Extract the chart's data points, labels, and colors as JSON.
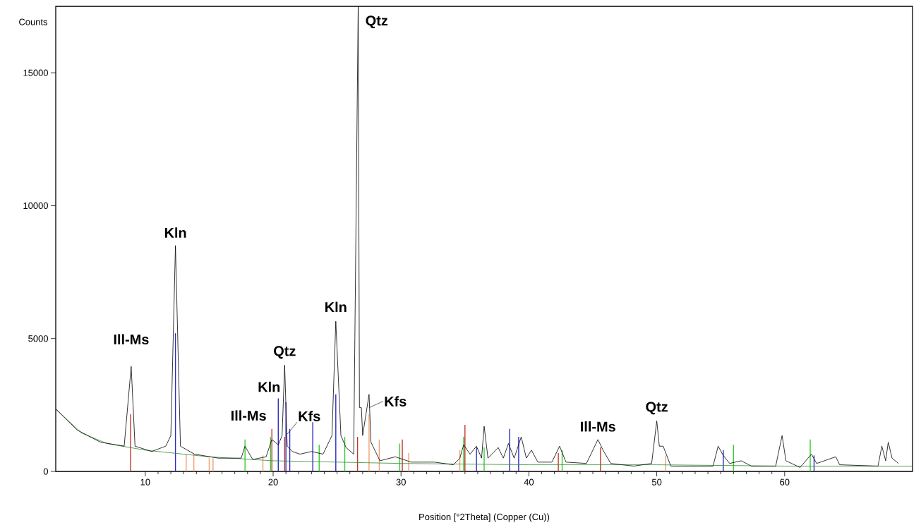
{
  "chart_data": {
    "type": "line",
    "xlabel": "Position [°2Theta] (Copper (Cu))",
    "ylabel": "Counts",
    "xlim": [
      3,
      70
    ],
    "ylim": [
      0,
      17500
    ],
    "xticks": [
      10,
      20,
      30,
      40,
      50,
      60
    ],
    "yticks": [
      0,
      5000,
      10000,
      15000
    ],
    "series": [
      {
        "type": "bar",
        "color": "#c0392b",
        "x": [
          8.85,
          19.9,
          20.9,
          26.6,
          30.1,
          35.0,
          42.3,
          45.6
        ],
        "values": [
          2150,
          1600,
          1300,
          1300,
          1200,
          1750,
          700,
          900
        ]
      },
      {
        "type": "bar",
        "color": "#2b2bc0",
        "x": [
          12.36,
          20.4,
          21.0,
          21.3,
          23.1,
          24.9,
          35.9,
          38.5,
          39.2,
          55.2,
          62.3
        ],
        "values": [
          5200,
          2750,
          2600,
          1600,
          1850,
          2900,
          900,
          1600,
          1300,
          800,
          600
        ]
      },
      {
        "type": "bar",
        "color": "#f0a070",
        "x": [
          13.2,
          13.8,
          15.0,
          15.3,
          19.2,
          27.5,
          28.3,
          30.6,
          34.6,
          50.7
        ],
        "values": [
          650,
          650,
          500,
          500,
          600,
          2150,
          1200,
          700,
          800,
          600
        ]
      },
      {
        "type": "bar",
        "color": "#33cc33",
        "x": [
          17.8,
          19.8,
          23.6,
          25.6,
          29.9,
          34.9,
          36.5,
          42.6,
          56.0,
          62.0
        ],
        "values": [
          1200,
          1300,
          1000,
          1300,
          1050,
          1300,
          900,
          800,
          1000,
          1200
        ]
      },
      {
        "color": "#2e8b2e",
        "x": [
          3,
          5,
          7,
          10,
          15,
          20,
          30,
          40,
          50,
          60,
          70
        ],
        "values": [
          2350,
          1450,
          1050,
          800,
          550,
          400,
          300,
          250,
          250,
          200,
          200
        ]
      },
      {
        "color": "#000000",
        "x": [
          3,
          4.7,
          6.5,
          8.35,
          8.9,
          9.2,
          10.5,
          11.6,
          12.0,
          12.36,
          12.75,
          13.85,
          15.7,
          17.5,
          17.8,
          18.4,
          19.45,
          19.9,
          20.4,
          20.7,
          20.9,
          21.1,
          21.5,
          22.1,
          23.0,
          23.9,
          24.6,
          24.9,
          25.3,
          25.7,
          26.3,
          26.65,
          26.75,
          26.9,
          27.0,
          27.5,
          27.65,
          28.35,
          29.55,
          30.8,
          32.6,
          34.1,
          34.6,
          34.9,
          35.4,
          35.9,
          36.3,
          36.5,
          36.8,
          37.6,
          38.0,
          38.4,
          38.85,
          39.4,
          39.8,
          40.2,
          40.7,
          41.8,
          42.4,
          42.9,
          44.5,
          45.4,
          45.8,
          46.4,
          48.2,
          49.6,
          50.0,
          50.2,
          50.5,
          51.1,
          52.7,
          54.4,
          54.8,
          55.2,
          55.7,
          56.6,
          57.4,
          59.3,
          59.8,
          60.1,
          61.2,
          62.1,
          62.5,
          64.0,
          64.3,
          67.3,
          67.6,
          67.9,
          68.1,
          68.4,
          68.9
        ],
        "values": [
          2350,
          1550,
          1100,
          950,
          3950,
          950,
          750,
          950,
          1350,
          8500,
          950,
          650,
          500,
          500,
          950,
          450,
          550,
          1200,
          1000,
          1350,
          4000,
          950,
          750,
          650,
          750,
          650,
          1350,
          5650,
          1350,
          900,
          650,
          17500,
          2400,
          2400,
          1350,
          2900,
          1100,
          400,
          550,
          350,
          350,
          250,
          500,
          1000,
          650,
          950,
          500,
          1700,
          500,
          900,
          500,
          1050,
          500,
          1300,
          500,
          800,
          350,
          350,
          950,
          350,
          300,
          1200,
          800,
          300,
          200,
          300,
          1900,
          950,
          950,
          200,
          200,
          200,
          950,
          600,
          300,
          400,
          200,
          200,
          1350,
          400,
          150,
          650,
          300,
          550,
          250,
          200,
          950,
          400,
          1100,
          500,
          300
        ]
      }
    ],
    "annotations": [
      {
        "text": "Ill-Ms",
        "x": 8.9,
        "y": 3950
      },
      {
        "text": "Kln",
        "x": 12.36,
        "y": 8500
      },
      {
        "text": "Ill-Ms",
        "x": 17.8,
        "y": 950
      },
      {
        "text": "Kln",
        "x": 20.4,
        "y": 2750
      },
      {
        "text": "Qtz",
        "x": 20.9,
        "y": 4000
      },
      {
        "text": "Kfs",
        "x": 21.1,
        "y": 1400
      },
      {
        "text": "Kln",
        "x": 24.9,
        "y": 5650
      },
      {
        "text": "Qtz",
        "x": 26.65,
        "y": 17500
      },
      {
        "text": "Kfs",
        "x": 27.5,
        "y": 2400
      },
      {
        "text": "Ill-Ms",
        "x": 45.4,
        "y": 1200
      },
      {
        "text": "Qtz",
        "x": 50.0,
        "y": 1900
      }
    ]
  }
}
